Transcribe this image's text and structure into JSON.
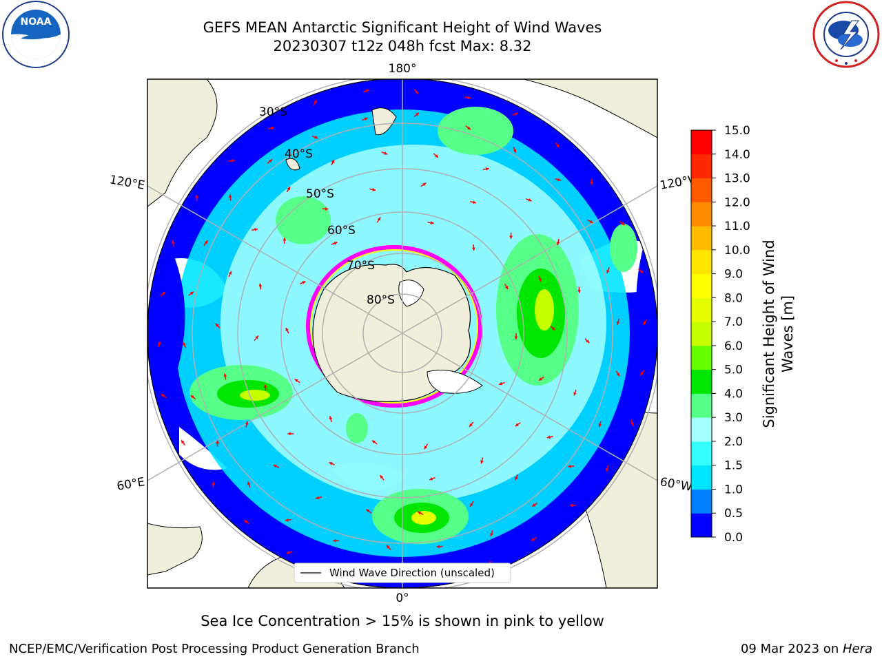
{
  "title": {
    "line1": "GEFS MEAN Antarctic Significant Height of Wind Waves",
    "line2": "20230307 t12z 048h fcst   Max: 8.32"
  },
  "logos": {
    "noaa_text": "NOAA",
    "noaa_ring_text": "NATIONAL OCEANIC AND ATMOSPHERIC ADMINISTRATION",
    "noaa_ring_bottom": "U.S. DEPARTMENT OF COMMERCE",
    "nws_ring_text": "NATIONAL WEATHER SERVICE"
  },
  "map": {
    "projection": "south-polar-stereographic",
    "longitude_labels": {
      "top": "180°",
      "bottom": "0°",
      "left_upper": "120°E",
      "left_lower": "60°E",
      "right_upper": "120°W",
      "right_lower": "60°W"
    },
    "latitude_labels": [
      "30°S",
      "40°S",
      "50°S",
      "60°S",
      "70°S",
      "80°S"
    ],
    "legend_label": "Wind Wave Direction (unscaled)",
    "colors": {
      "land": "#efefdc",
      "ocean_missing": "#ffffff",
      "arrow": "#ff0000",
      "grid": "#b0b0b0",
      "sea_ice_low": "#ff00ff",
      "sea_ice_high": "#ffff00"
    }
  },
  "colorbar": {
    "label_line1": "Significant Height of Wind",
    "label_line2": "Waves [m]",
    "ticks": [
      "0.0",
      "0.5",
      "1.0",
      "1.5",
      "2.0",
      "3.0",
      "4.0",
      "5.0",
      "6.0",
      "7.0",
      "8.0",
      "9.0",
      "10.0",
      "11.0",
      "12.0",
      "13.0",
      "14.0",
      "15.0"
    ],
    "colors": [
      "#0000ff",
      "#0080ff",
      "#00e5ff",
      "#33ffff",
      "#a6ffff",
      "#55ff88",
      "#00e600",
      "#66ff00",
      "#c8ff00",
      "#e6ff00",
      "#ffff00",
      "#ffe600",
      "#ffbb00",
      "#ff8c00",
      "#ff5a00",
      "#ff2800",
      "#ff0000"
    ]
  },
  "note": "Sea Ice Concentration > 15% is shown in pink to yellow",
  "footer": {
    "left": "NCEP/EMC/Verification Post Processing Product Generation Branch",
    "right_prefix": "09 Mar 2023 on ",
    "right_machine": "Hera"
  }
}
